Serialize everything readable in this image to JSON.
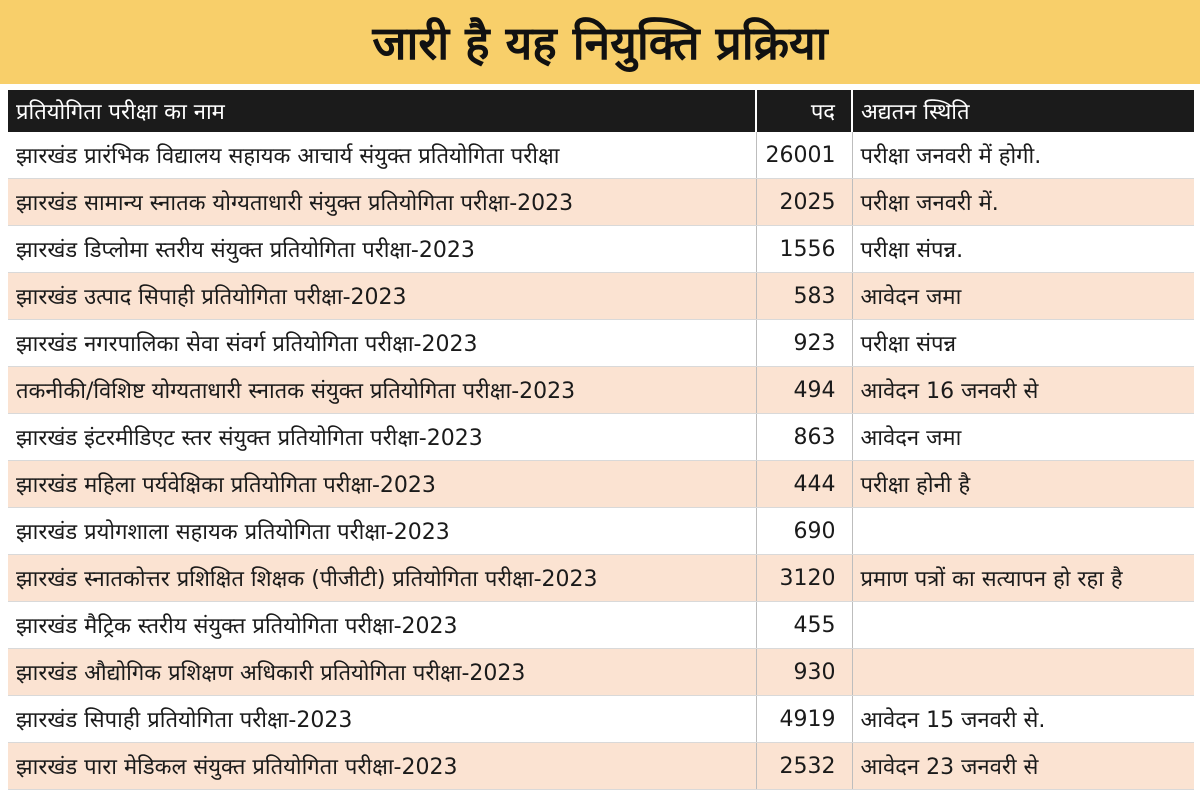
{
  "title": "जारी है यह नियुक्ति प्रक्रिया",
  "colors": {
    "banner": "#f8cf6a",
    "header_bg": "#1b1b1b",
    "row_alt": "#fbe3d2"
  },
  "table": {
    "headers": {
      "name": "प्रतियोगिता परीक्षा का नाम",
      "posts": "पद",
      "status": "अद्यतन स्थिति"
    },
    "rows": [
      {
        "name": "झारखंड प्रारंभिक विद्यालय सहायक आचार्य संयुक्त प्रतियोगिता परीक्षा",
        "posts": "26001",
        "status": "परीक्षा जनवरी में होगी."
      },
      {
        "name": "झारखंड सामान्य स्नातक योग्यताधारी संयुक्त प्रतियोगिता परीक्षा-2023",
        "posts": "2025",
        "status": "परीक्षा जनवरी में."
      },
      {
        "name": "झारखंड डिप्लोमा स्तरीय संयुक्त प्रतियोगिता परीक्षा-2023",
        "posts": "1556",
        "status": "परीक्षा संपन्न."
      },
      {
        "name": "झारखंड उत्पाद सिपाही प्रतियोगिता परीक्षा-2023",
        "posts": "583",
        "status": "आवेदन जमा"
      },
      {
        "name": "झारखंड नगरपालिका सेवा संवर्ग प्रतियोगिता परीक्षा-2023",
        "posts": "923",
        "status": "परीक्षा संपन्न"
      },
      {
        "name": "तकनीकी/विशिष्ट योग्यताधारी स्नातक संयुक्त प्रतियोगिता परीक्षा-2023",
        "posts": "494",
        "status": "आवेदन 16 जनवरी से"
      },
      {
        "name": "झारखंड इंटरमीडिएट स्तर संयुक्त प्रतियोगिता परीक्षा-2023",
        "posts": "863",
        "status": "आवेदन जमा"
      },
      {
        "name": "झारखंड महिला पर्यवेक्षिका प्रतियोगिता परीक्षा-2023",
        "posts": "444",
        "status": "परीक्षा होनी है"
      },
      {
        "name": "झारखंड प्रयोगशाला सहायक प्रतियोगिता परीक्षा-2023",
        "posts": "690",
        "status": ""
      },
      {
        "name": "झारखंड स्नातकोत्तर प्रशिक्षित शिक्षक (पीजीटी) प्रतियोगिता परीक्षा-2023",
        "posts": "3120",
        "status": "प्रमाण पत्रों का सत्यापन हो रहा है"
      },
      {
        "name": "झारखंड मैट्रिक स्तरीय संयुक्त प्रतियोगिता परीक्षा-2023",
        "posts": "455",
        "status": ""
      },
      {
        "name": "झारखंड औद्योगिक प्रशिक्षण अधिकारी प्रतियोगिता परीक्षा-2023",
        "posts": "930",
        "status": ""
      },
      {
        "name": "झारखंड सिपाही प्रतियोगिता परीक्षा-2023",
        "posts": "4919",
        "status": "आवेदन 15 जनवरी से."
      },
      {
        "name": "झारखंड पारा मेडिकल संयुक्त प्रतियोगिता परीक्षा-2023",
        "posts": "2532",
        "status": "आवेदन 23 जनवरी से"
      }
    ]
  }
}
